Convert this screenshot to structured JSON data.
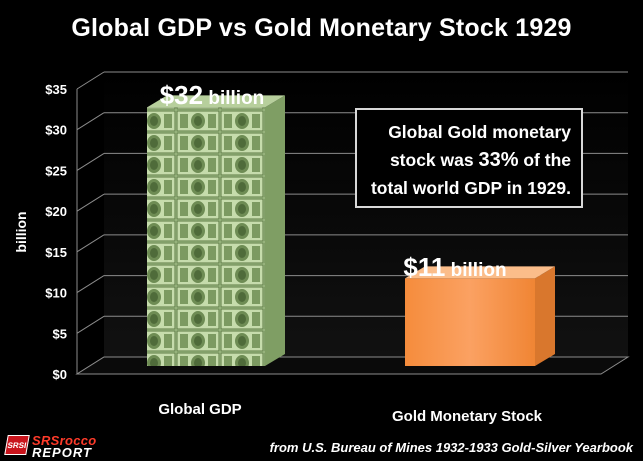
{
  "title": "Global GDP vs Gold Monetary Stock 1929",
  "chart_data": {
    "type": "bar",
    "categories": [
      "Global GDP",
      "Gold Monetary Stock"
    ],
    "values": [
      32,
      11
    ],
    "value_labels": [
      "$32 billion",
      "$11 billion"
    ],
    "value_label_number": [
      "$32",
      "$11"
    ],
    "value_label_unit": "billion",
    "ylabel": "billion",
    "yticks": [
      "$0",
      "$5",
      "$10",
      "$15",
      "$20",
      "$25",
      "$30",
      "$35"
    ],
    "ylim": [
      0,
      35
    ],
    "grid": true,
    "bar_styles": [
      "dollar-bills",
      "orange"
    ],
    "colors": {
      "orange_bar": "#f79646",
      "orange_top": "#fbbd8a",
      "gridline": "#8c8c8c",
      "bill_green": "#8fae72"
    }
  },
  "annotation": {
    "line1": "Global Gold monetary",
    "line2_prefix": "stock was ",
    "line2_highlight": "33%",
    "line2_suffix": " of the",
    "line3": "total world GDP in 1929."
  },
  "logo": {
    "badge": "SRSI",
    "line1": "SRSrocco",
    "line2": "REPORT"
  },
  "source": "from U.S. Bureau of Mines 1932-1933 Gold-Silver Yearbook"
}
